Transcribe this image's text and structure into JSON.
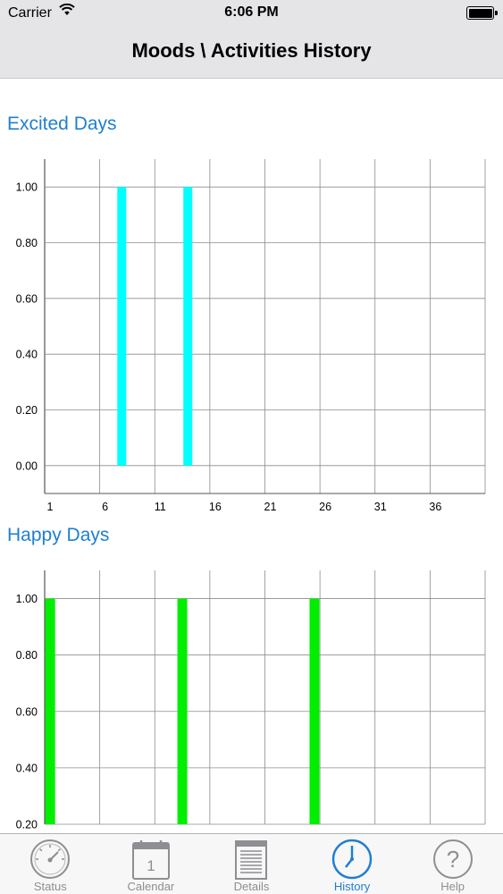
{
  "status_bar": {
    "carrier": "Carrier",
    "time": "6:06 PM"
  },
  "nav": {
    "title": "Moods \\ Activities History"
  },
  "charts": [
    {
      "title": "Excited Days"
    },
    {
      "title": "Happy Days"
    }
  ],
  "chart_data": [
    {
      "type": "bar",
      "title": "Excited Days",
      "xlabel": "",
      "ylabel": "",
      "x_ticks": [
        "1",
        "6",
        "11",
        "16",
        "21",
        "26",
        "31",
        "36"
      ],
      "y_ticks": [
        "0.00",
        "0.20",
        "0.40",
        "0.60",
        "0.80",
        "1.00"
      ],
      "xlim": [
        0,
        40
      ],
      "ylim": [
        -0.1,
        1.1
      ],
      "grid": true,
      "color": "#00ffff",
      "x": [
        7,
        13
      ],
      "values": [
        1.0,
        1.0
      ]
    },
    {
      "type": "bar",
      "title": "Happy Days",
      "xlabel": "",
      "ylabel": "",
      "y_ticks": [
        "0.20",
        "0.40",
        "0.60",
        "0.80",
        "1.00"
      ],
      "xlim": [
        0,
        40
      ],
      "ylim": [
        0.2,
        1.1
      ],
      "grid": true,
      "color": "#00ee00",
      "x": [
        0.5,
        12.5,
        24.5
      ],
      "values": [
        1.0,
        1.0,
        1.0
      ]
    }
  ],
  "tabs": [
    {
      "label": "Status",
      "icon": "speedometer-icon"
    },
    {
      "label": "Calendar",
      "icon": "calendar-icon",
      "day": "1"
    },
    {
      "label": "Details",
      "icon": "document-icon"
    },
    {
      "label": "History",
      "icon": "clock-icon",
      "active": true
    },
    {
      "label": "Help",
      "icon": "question-icon"
    }
  ]
}
